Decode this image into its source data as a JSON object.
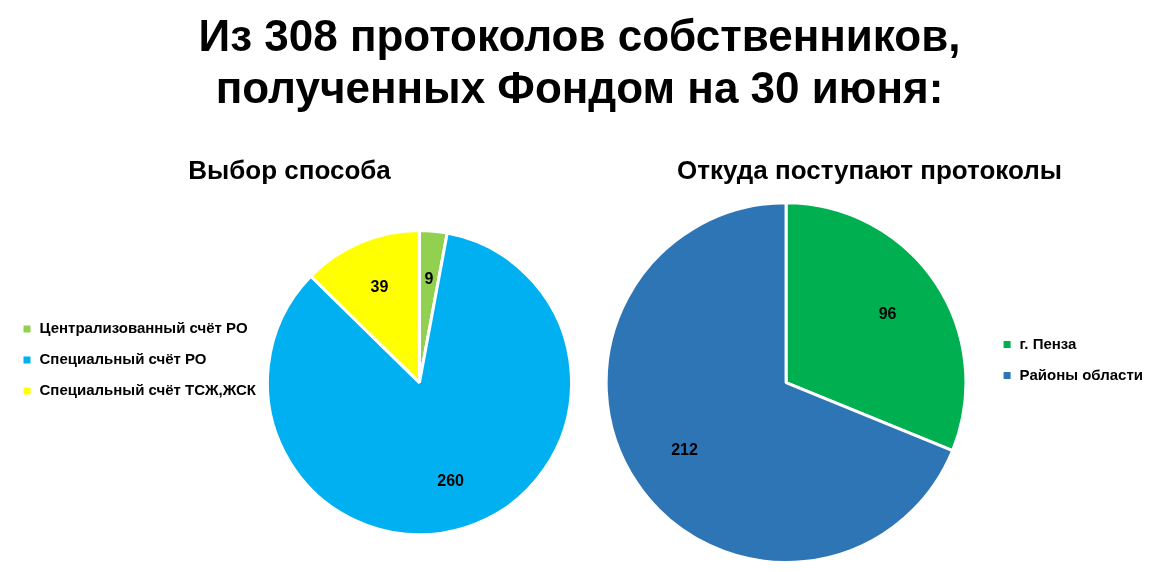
{
  "chart_data": [
    {
      "type": "other",
      "title": "Из 308 протоколов собственников, полученных Фондом на 30 июня:"
    },
    {
      "type": "pie",
      "title": "Выбор способа",
      "categories": [
        "Централизованный счёт РО",
        "Специальный счёт РО",
        "Специальный счёт ТСЖ,ЖСК"
      ],
      "values": [
        9,
        260,
        39
      ],
      "colors": [
        "#92d050",
        "#00b0f0",
        "#ffff00"
      ],
      "data_labels": true,
      "legend": "left"
    },
    {
      "type": "pie",
      "title": "Откуда поступают протоколы",
      "categories": [
        "г. Пенза",
        "Районы области"
      ],
      "values": [
        96,
        212
      ],
      "colors": [
        "#00b050",
        "#2e75b6"
      ],
      "data_labels": true,
      "legend": "right"
    }
  ]
}
